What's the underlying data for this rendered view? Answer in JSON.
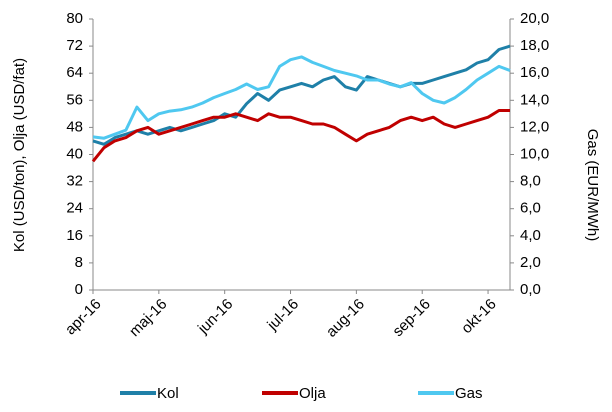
{
  "chart_data": {
    "type": "line",
    "categories": [
      "apr-16",
      null,
      null,
      null,
      null,
      null,
      "maj-16",
      null,
      null,
      null,
      null,
      null,
      "jun-16",
      null,
      null,
      null,
      null,
      null,
      "jul-16",
      null,
      null,
      null,
      null,
      null,
      "aug-16",
      null,
      null,
      null,
      null,
      null,
      "sep-16",
      null,
      null,
      null,
      null,
      null,
      "okt-16",
      null,
      null
    ],
    "ylabel": "Kol (USD/ton), Olja (USD/fat)",
    "y2label": "Gas (EUR/MWh)",
    "ylim": [
      0,
      80
    ],
    "yticks": [
      0,
      8,
      16,
      24,
      32,
      40,
      48,
      56,
      64,
      72,
      80
    ],
    "y2lim": [
      0,
      20
    ],
    "y2ticks": [
      {
        "value": 0,
        "label": "0,0"
      },
      {
        "value": 2,
        "label": "2,0"
      },
      {
        "value": 4,
        "label": "4,0"
      },
      {
        "value": 6,
        "label": "6,0"
      },
      {
        "value": 8,
        "label": "8,0"
      },
      {
        "value": 10,
        "label": "10,0"
      },
      {
        "value": 12,
        "label": "12,0"
      },
      {
        "value": 14,
        "label": "14,0"
      },
      {
        "value": 16,
        "label": "16,0"
      },
      {
        "value": 18,
        "label": "18,0"
      },
      {
        "value": 20,
        "label": "20,0"
      }
    ],
    "grid": false,
    "legend": "bottom",
    "series": [
      {
        "name": "Kol",
        "color": "#1f80a8",
        "values": [
          44,
          43,
          45,
          46,
          47,
          46,
          47,
          48,
          47,
          48,
          49,
          50,
          52,
          51,
          55,
          58,
          56,
          59,
          60,
          61,
          60,
          62,
          63,
          60,
          59,
          63,
          62,
          61,
          60,
          61,
          61,
          62,
          63,
          64,
          65,
          67,
          68,
          71,
          72
        ]
      },
      {
        "name": "Olja",
        "color": "#c00000",
        "values": [
          38,
          42,
          44,
          45,
          47,
          48,
          46,
          47,
          48,
          49,
          50,
          51,
          51,
          52,
          51,
          50,
          52,
          51,
          51,
          50,
          49,
          49,
          48,
          46,
          44,
          46,
          47,
          48,
          50,
          51,
          50,
          51,
          49,
          48,
          49,
          50,
          51,
          53,
          53
        ]
      },
      {
        "name": "Gas",
        "color": "#4fc8f0",
        "axis": "y2",
        "values": [
          11.3,
          11.2,
          11.5,
          11.8,
          13.5,
          12.5,
          13.0,
          13.2,
          13.3,
          13.5,
          13.8,
          14.2,
          14.5,
          14.8,
          15.2,
          14.8,
          15.0,
          16.5,
          17.0,
          17.2,
          16.8,
          16.5,
          16.2,
          16.0,
          15.8,
          15.5,
          15.5,
          15.2,
          15.0,
          15.3,
          14.5,
          14.0,
          13.8,
          14.2,
          14.8,
          15.5,
          16.0,
          16.5,
          16.2
        ]
      }
    ]
  }
}
